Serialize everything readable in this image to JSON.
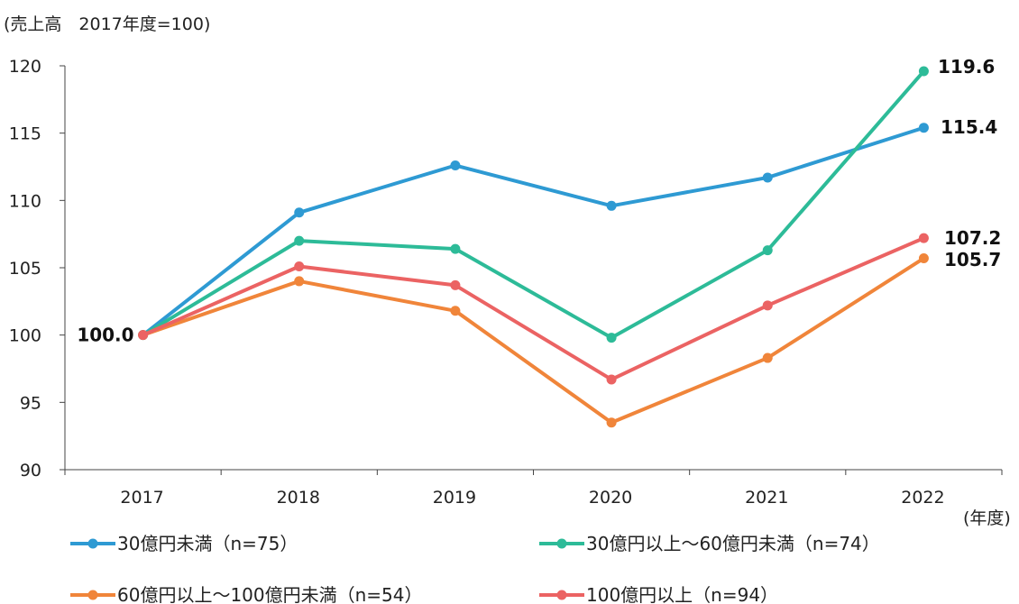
{
  "chart_data": {
    "type": "line",
    "subtitle": "(売上高　2017年度=100)",
    "xlabel": "(年度)",
    "ylabel": "",
    "x": [
      "2017",
      "2018",
      "2019",
      "2020",
      "2021",
      "2022"
    ],
    "ylim": [
      90,
      120
    ],
    "yticks": [
      90,
      95,
      100,
      105,
      110,
      115,
      120
    ],
    "grid": false,
    "legend_position": "bottom",
    "series": [
      {
        "name": "30億円未満（n=75）",
        "color": "#2E9AD3",
        "values": [
          100.0,
          109.1,
          112.6,
          109.6,
          111.7,
          115.4
        ],
        "end_label": "115.4"
      },
      {
        "name": "30億円以上～60億円未満（n=74）",
        "color": "#2DBB98",
        "values": [
          100.0,
          107.0,
          106.4,
          99.8,
          106.3,
          119.6
        ],
        "end_label": "119.6"
      },
      {
        "name": "60億円以上～100億円未満（n=54）",
        "color": "#F0853A",
        "values": [
          100.0,
          104.0,
          101.8,
          93.5,
          98.3,
          105.7
        ],
        "end_label": "105.7"
      },
      {
        "name": "100億円以上（n=94）",
        "color": "#EB6363",
        "values": [
          100.0,
          105.1,
          103.7,
          96.7,
          102.2,
          107.2
        ],
        "end_label": "107.2"
      }
    ],
    "start_label": "100.0"
  }
}
